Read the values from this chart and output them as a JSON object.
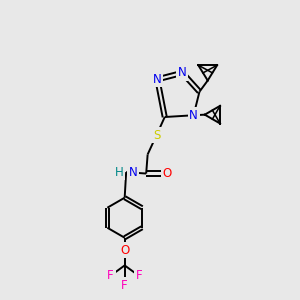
{
  "background_color": "#e8e8e8",
  "atom_colors": {
    "N": "#0000ee",
    "S": "#cccc00",
    "O": "#ff0000",
    "F": "#ff00bb",
    "C": "#000000",
    "H": "#008888"
  },
  "figsize": [
    3.0,
    3.0
  ],
  "dpi": 100,
  "lw": 1.4
}
